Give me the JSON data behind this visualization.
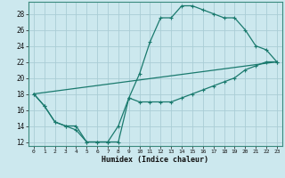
{
  "xlabel": "Humidex (Indice chaleur)",
  "bg_color": "#cce8ee",
  "line_color": "#1a7a6e",
  "grid_color": "#aacdd5",
  "xlim": [
    -0.5,
    23.5
  ],
  "ylim": [
    11.5,
    29.5
  ],
  "xticks": [
    0,
    1,
    2,
    3,
    4,
    5,
    6,
    7,
    8,
    9,
    10,
    11,
    12,
    13,
    14,
    15,
    16,
    17,
    18,
    19,
    20,
    21,
    22,
    23
  ],
  "yticks": [
    12,
    14,
    16,
    18,
    20,
    22,
    24,
    26,
    28
  ],
  "line1_x": [
    0,
    1,
    2,
    3,
    4,
    5,
    6,
    7,
    8,
    9,
    10,
    11,
    12,
    13,
    14,
    15,
    16,
    17,
    18,
    19,
    20,
    21,
    22,
    23
  ],
  "line1_y": [
    18,
    16.5,
    14.5,
    14,
    13.5,
    12,
    12,
    12,
    14,
    17.5,
    20.5,
    24.5,
    27.5,
    27.5,
    29,
    29,
    28.5,
    28,
    27.5,
    27.5,
    26,
    24,
    23.5,
    22
  ],
  "line2_x": [
    0,
    1,
    2,
    3,
    4,
    5,
    6,
    7,
    8,
    9,
    10,
    11,
    12,
    13,
    14,
    15,
    16,
    17,
    18,
    19,
    20,
    21,
    22,
    23
  ],
  "line2_y": [
    18,
    16.5,
    14.5,
    14,
    14,
    12,
    12,
    12,
    12,
    17.5,
    17,
    17,
    17,
    17,
    17.5,
    18,
    18.5,
    19,
    19.5,
    20,
    21,
    21.5,
    22,
    22
  ],
  "line3_x": [
    0,
    23
  ],
  "line3_y": [
    18,
    22
  ],
  "line1_marker_x": [
    0,
    1,
    2,
    3,
    4,
    5,
    6,
    7,
    8,
    9,
    10,
    11,
    12,
    13,
    14,
    15,
    16,
    17,
    18,
    19,
    20,
    21,
    22,
    23
  ],
  "line1_marker_y": [
    18,
    16.5,
    14.5,
    14,
    13.5,
    12,
    12,
    12,
    14,
    17.5,
    20.5,
    24.5,
    27.5,
    27.5,
    29,
    29,
    28.5,
    28,
    27.5,
    27.5,
    26,
    24,
    23.5,
    22
  ],
  "line2_marker_x": [
    0,
    1,
    2,
    3,
    4,
    5,
    6,
    7,
    8,
    9,
    10,
    11,
    12,
    13,
    14,
    15,
    16,
    17,
    18,
    19,
    20,
    21,
    22,
    23
  ],
  "line2_marker_y": [
    18,
    16.5,
    14.5,
    14,
    14,
    12,
    12,
    12,
    12,
    17.5,
    17,
    17,
    17,
    17,
    17.5,
    18,
    18.5,
    19,
    19.5,
    20,
    21,
    21.5,
    22,
    22
  ]
}
